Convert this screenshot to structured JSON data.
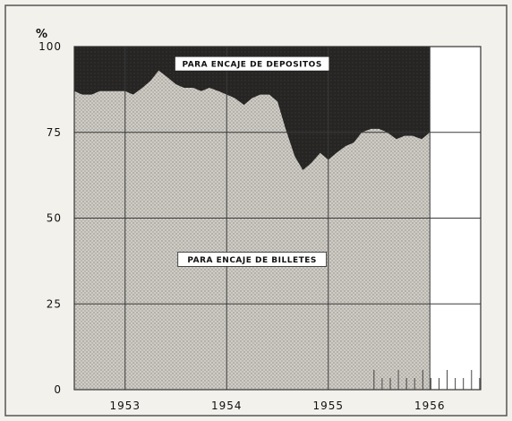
{
  "chart_data": {
    "type": "area",
    "unit_label": "%",
    "y_ticks": [
      0,
      25,
      50,
      75,
      100
    ],
    "x_period_labels": [
      "1953",
      "1954",
      "1955",
      "1956"
    ],
    "x_range": [
      1953.0,
      1957.0
    ],
    "ylim": [
      0,
      100
    ],
    "data_end": 1956.5,
    "grid": true,
    "annotations": [
      {
        "text": "PARA ENCAJE DE DEPOSITOS",
        "x": 1954.75,
        "y": 95
      },
      {
        "text": "PARA ENCAJE DE BILLETES",
        "x": 1954.75,
        "y": 38
      }
    ],
    "series": [
      {
        "key": "billetes",
        "x": [
          1953.0,
          1953.08,
          1953.17,
          1953.25,
          1953.33,
          1953.42,
          1953.5,
          1953.58,
          1953.67,
          1953.75,
          1953.83,
          1953.92,
          1954.0,
          1954.08,
          1954.17,
          1954.25,
          1954.33,
          1954.42,
          1954.5,
          1954.58,
          1954.67,
          1954.75,
          1954.83,
          1954.92,
          1955.0,
          1955.08,
          1955.17,
          1955.25,
          1955.33,
          1955.42,
          1955.5,
          1955.58,
          1955.67,
          1955.75,
          1955.83,
          1955.92,
          1956.0,
          1956.08,
          1956.17,
          1956.25,
          1956.33,
          1956.42,
          1956.5
        ],
        "values": [
          87,
          86,
          86,
          87,
          87,
          87,
          87,
          86,
          88,
          90,
          93,
          91,
          89,
          88,
          88,
          87,
          88,
          87,
          86,
          85,
          83,
          85,
          86,
          86,
          84,
          76,
          68,
          64,
          66,
          69,
          67,
          69,
          71,
          72,
          75,
          76,
          76,
          75,
          73,
          74,
          74,
          73,
          75
        ]
      },
      {
        "key": "depositos",
        "x": [
          1953.0,
          1956.5
        ],
        "values": [
          100,
          100
        ]
      }
    ]
  }
}
